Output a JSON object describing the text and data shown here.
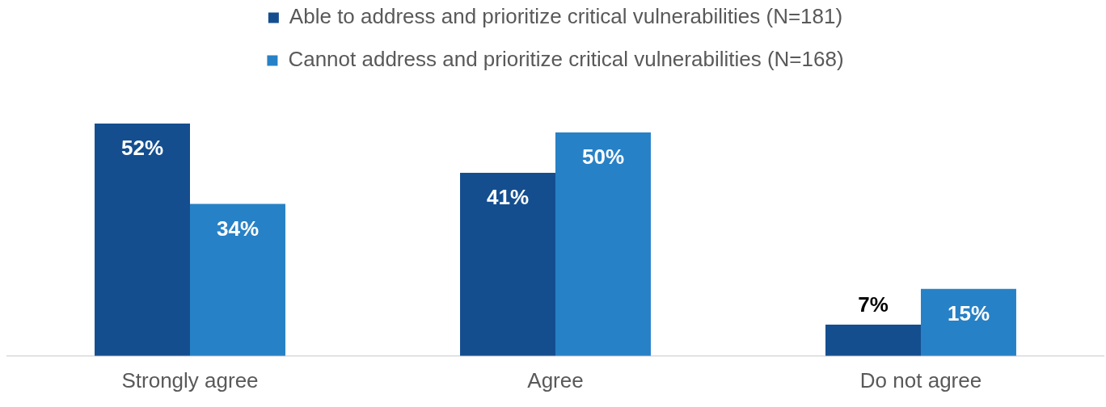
{
  "chart_data": {
    "type": "bar",
    "categories": [
      "Strongly agree",
      "Agree",
      "Do not agree"
    ],
    "series": [
      {
        "name": "Able to address and prioritize critical vulnerabilities (N=181)",
        "color": "#144e8f",
        "values": [
          52,
          41,
          7
        ],
        "value_labels": [
          "52%",
          "41%",
          "7%"
        ]
      },
      {
        "name": "Cannot address and prioritize critical vulnerabilities (N=168)",
        "color": "#2781c6",
        "values": [
          34,
          50,
          15
        ],
        "value_labels": [
          "34%",
          "50%",
          "15%"
        ]
      }
    ],
    "legend": "top",
    "tick_labels": "x",
    "grid": false
  }
}
